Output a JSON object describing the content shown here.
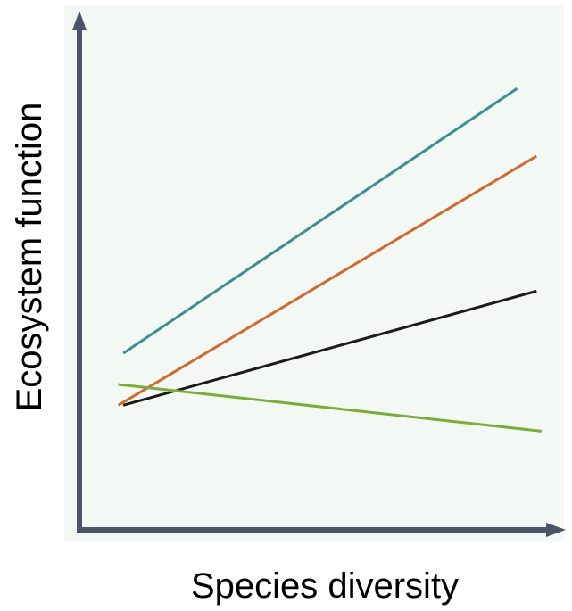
{
  "chart_data": {
    "type": "line",
    "title": "",
    "xlabel": "Species diversity",
    "ylabel": "Ecosystem function",
    "xlim": [
      0,
      100
    ],
    "ylim": [
      0,
      100
    ],
    "grid": false,
    "legend": "none",
    "tick_labels": false,
    "colors": {
      "plot_background": "#f3f8f4",
      "axis": "#4a5368"
    },
    "series": [
      {
        "color": "#3a8f93",
        "x": [
          9,
          90
        ],
        "y": [
          34,
          85
        ]
      },
      {
        "color": "#d0692f",
        "x": [
          8,
          94
        ],
        "y": [
          24,
          72
        ]
      },
      {
        "color": "#1a1a1a",
        "x": [
          9,
          94
        ],
        "y": [
          24,
          46
        ]
      },
      {
        "color": "#79ad3a",
        "x": [
          8,
          95
        ],
        "y": [
          28,
          19
        ]
      }
    ]
  }
}
